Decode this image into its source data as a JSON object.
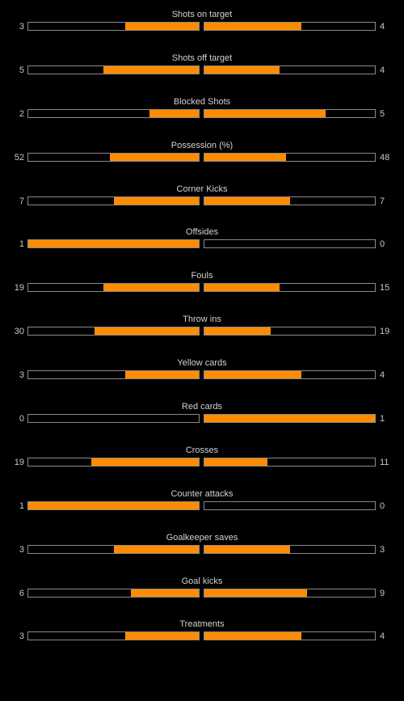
{
  "stats": [
    {
      "label": "Shots on target",
      "home": "3",
      "away": "4",
      "home_fill": 0.43,
      "away_fill": 0.57
    },
    {
      "label": "Shots off target",
      "home": "5",
      "away": "4",
      "home_fill": 0.56,
      "away_fill": 0.44
    },
    {
      "label": "Blocked Shots",
      "home": "2",
      "away": "5",
      "home_fill": 0.29,
      "away_fill": 0.71
    },
    {
      "label": "Possession (%)",
      "home": "52",
      "away": "48",
      "home_fill": 0.52,
      "away_fill": 0.48
    },
    {
      "label": "Corner Kicks",
      "home": "7",
      "away": "7",
      "home_fill": 0.5,
      "away_fill": 0.5
    },
    {
      "label": "Offsides",
      "home": "1",
      "away": "0",
      "home_fill": 1.0,
      "away_fill": 0.0
    },
    {
      "label": "Fouls",
      "home": "19",
      "away": "15",
      "home_fill": 0.56,
      "away_fill": 0.44
    },
    {
      "label": "Throw ins",
      "home": "30",
      "away": "19",
      "home_fill": 0.61,
      "away_fill": 0.39
    },
    {
      "label": "Yellow cards",
      "home": "3",
      "away": "4",
      "home_fill": 0.43,
      "away_fill": 0.57
    },
    {
      "label": "Red cards",
      "home": "0",
      "away": "1",
      "home_fill": 0.0,
      "away_fill": 1.0
    },
    {
      "label": "Crosses",
      "home": "19",
      "away": "11",
      "home_fill": 0.63,
      "away_fill": 0.37
    },
    {
      "label": "Counter attacks",
      "home": "1",
      "away": "0",
      "home_fill": 1.0,
      "away_fill": 0.0
    },
    {
      "label": "Goalkeeper saves",
      "home": "3",
      "away": "3",
      "home_fill": 0.5,
      "away_fill": 0.5
    },
    {
      "label": "Goal kicks",
      "home": "6",
      "away": "9",
      "home_fill": 0.4,
      "away_fill": 0.6
    },
    {
      "label": "Treatments",
      "home": "3",
      "away": "4",
      "home_fill": 0.43,
      "away_fill": 0.57
    }
  ],
  "colors": {
    "background": "#000000",
    "bar_fill": "#ff8c00",
    "bar_border": "#8a8a8a",
    "text": "#c8c8c8"
  }
}
